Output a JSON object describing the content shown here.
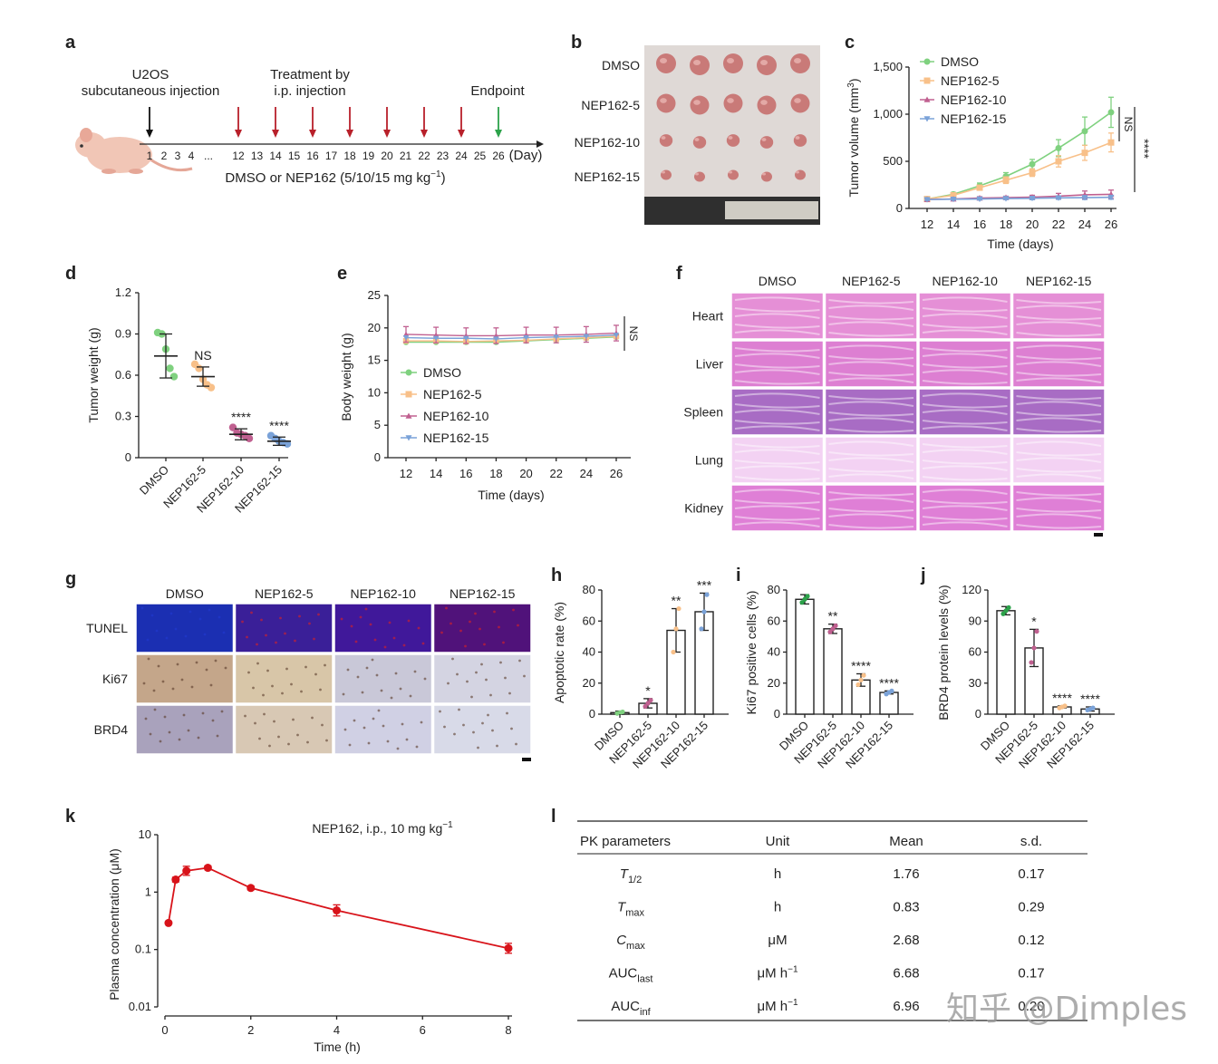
{
  "panels": {
    "a": "a",
    "b": "b",
    "c": "c",
    "d": "d",
    "e": "e",
    "f": "f",
    "g": "g",
    "h": "h",
    "i": "i",
    "j": "j",
    "k": "k",
    "l": "l"
  },
  "panel_a": {
    "injection_label_1": "U2OS",
    "injection_label_2": "subcutaneous injection",
    "treatment_label_1": "Treatment by",
    "treatment_label_2": "i.p. injection",
    "endpoint_label": "Endpoint",
    "axis_ticks": [
      "1",
      "2",
      "3",
      "4",
      "...",
      "12",
      "13",
      "14",
      "15",
      "16",
      "17",
      "18",
      "19",
      "20",
      "21",
      "22",
      "23",
      "24",
      "25",
      "26"
    ],
    "unit": "(Day)",
    "treatment_days": [
      12,
      14,
      16,
      18,
      20,
      22,
      24
    ],
    "endpoint_day": 26,
    "dose_label_main": "DMSO or NEP162 (5/10/15 mg kg",
    "dose_label_sup": "−1",
    "dose_label_close": ")",
    "colors": {
      "injection": "#111111",
      "treatment": "#b8202a",
      "endpoint": "#2ca24a"
    }
  },
  "panel_b": {
    "row_labels": [
      "DMSO",
      "NEP162-5",
      "NEP162-10",
      "NEP162-15"
    ],
    "tumors_per_row": 5,
    "relative_size": [
      1.0,
      0.95,
      0.62,
      0.5
    ]
  },
  "panel_c": {
    "chart_data": {
      "type": "line",
      "x": [
        12,
        14,
        16,
        18,
        20,
        22,
        24,
        26
      ],
      "series": [
        {
          "name": "DMSO",
          "values": [
            100,
            150,
            240,
            340,
            470,
            640,
            820,
            1020
          ],
          "err": [
            15,
            20,
            30,
            40,
            50,
            90,
            150,
            160
          ],
          "color": "#7fd17f",
          "marker": "circle"
        },
        {
          "name": "NEP162-5",
          "values": [
            100,
            140,
            220,
            300,
            380,
            500,
            590,
            700
          ],
          "err": [
            15,
            20,
            25,
            35,
            40,
            60,
            80,
            100
          ],
          "color": "#f8c089",
          "marker": "square"
        },
        {
          "name": "NEP162-10",
          "values": [
            95,
            100,
            110,
            115,
            120,
            130,
            145,
            150
          ],
          "err": [
            10,
            10,
            15,
            15,
            20,
            30,
            40,
            45
          ],
          "color": "#c06090",
          "marker": "triangle"
        },
        {
          "name": "NEP162-15",
          "values": [
            95,
            98,
            100,
            105,
            108,
            112,
            115,
            118
          ],
          "err": [
            10,
            10,
            10,
            10,
            15,
            15,
            20,
            20
          ],
          "color": "#7aa2d8",
          "marker": "triangle-down"
        }
      ],
      "xlabel": "Time (days)",
      "ylabel_main": "Tumor volume (mm",
      "ylabel_sup": "3",
      "ylabel_close": ")",
      "yticks": [
        "0",
        "500",
        "1,000",
        "1,500"
      ],
      "ylim": [
        0,
        1500
      ],
      "xticks": [
        "12",
        "14",
        "16",
        "18",
        "20",
        "22",
        "24",
        "26"
      ],
      "sig": [
        "NS",
        "****"
      ]
    }
  },
  "panel_d": {
    "chart_data": {
      "type": "scatter",
      "categories": [
        "DMSO",
        "NEP162-5",
        "NEP162-10",
        "NEP162-15"
      ],
      "means": [
        0.74,
        0.59,
        0.17,
        0.12
      ],
      "sd": [
        0.16,
        0.07,
        0.04,
        0.03
      ],
      "points": [
        [
          0.91,
          0.9,
          0.79,
          0.65,
          0.59
        ],
        [
          0.68,
          0.65,
          0.57,
          0.53,
          0.51
        ],
        [
          0.22,
          0.18,
          0.17,
          0.16,
          0.14
        ],
        [
          0.16,
          0.14,
          0.12,
          0.11,
          0.1
        ]
      ],
      "colors": [
        "#7fd17f",
        "#f8c089",
        "#c06090",
        "#7aa2d8"
      ],
      "ylabel": "Tumor weight (g)",
      "yticks": [
        "0",
        "0.3",
        "0.6",
        "0.9",
        "1.2"
      ],
      "ylim": [
        0,
        1.2
      ],
      "sig": [
        "",
        "NS",
        "****",
        "****"
      ]
    }
  },
  "panel_e": {
    "chart_data": {
      "type": "line",
      "x": [
        12,
        14,
        16,
        18,
        20,
        22,
        24,
        26
      ],
      "series": [
        {
          "name": "DMSO",
          "values": [
            17.8,
            17.8,
            17.8,
            17.8,
            18.0,
            18.2,
            18.4,
            18.6
          ],
          "color": "#7fd17f",
          "marker": "circle"
        },
        {
          "name": "NEP162-5",
          "values": [
            18.0,
            18.0,
            17.9,
            18.0,
            18.1,
            18.3,
            18.5,
            18.7
          ],
          "color": "#f8c089",
          "marker": "square"
        },
        {
          "name": "NEP162-10",
          "values": [
            19.0,
            18.9,
            18.8,
            18.8,
            18.9,
            18.9,
            19.0,
            19.2
          ],
          "err": [
            1.2,
            1.2,
            1.2,
            1.2,
            1.2,
            1.2,
            1.2,
            1.2
          ],
          "color": "#c06090",
          "marker": "triangle"
        },
        {
          "name": "NEP162-15",
          "values": [
            18.5,
            18.4,
            18.4,
            18.3,
            18.5,
            18.6,
            18.7,
            18.9
          ],
          "color": "#7aa2d8",
          "marker": "triangle-down"
        }
      ],
      "xlabel": "Time (days)",
      "ylabel": "Body weight (g)",
      "yticks": [
        "0",
        "5",
        "10",
        "15",
        "20",
        "25"
      ],
      "ylim": [
        0,
        25
      ],
      "xticks": [
        "12",
        "14",
        "16",
        "18",
        "20",
        "22",
        "24",
        "26"
      ],
      "sig": "NS"
    }
  },
  "panel_f": {
    "columns": [
      "DMSO",
      "NEP162-5",
      "NEP162-10",
      "NEP162-15"
    ],
    "rows": [
      "Heart",
      "Liver",
      "Spleen",
      "Lung",
      "Kidney"
    ],
    "row_colors": [
      "#e58fd6",
      "#dd7fd2",
      "#a86cc4",
      "#f3d2f3",
      "#df7fd6"
    ]
  },
  "panel_g": {
    "columns": [
      "DMSO",
      "NEP162-5",
      "NEP162-10",
      "NEP162-15"
    ],
    "rows": [
      "TUNEL",
      "Ki67",
      "BRD4"
    ],
    "row_colors": [
      [
        "#1b2fb2",
        "#3a1f98",
        "#40189a",
        "#50127a"
      ],
      [
        "#c4a68a",
        "#d8c6a8",
        "#c9c8d8",
        "#d4d4e2"
      ],
      [
        "#a9a2bc",
        "#d8c8b4",
        "#d0d0e4",
        "#d8dae8"
      ]
    ]
  },
  "panel_h": {
    "chart_data": {
      "type": "bar",
      "categories": [
        "DMSO",
        "NEP162-5",
        "NEP162-10",
        "NEP162-15"
      ],
      "values": [
        1,
        7,
        54,
        66
      ],
      "sd": [
        1,
        3,
        14,
        12
      ],
      "points": [
        [
          0.5,
          1,
          1.5
        ],
        [
          5,
          7,
          9
        ],
        [
          40,
          55,
          68
        ],
        [
          55,
          66,
          77
        ]
      ],
      "point_colors": [
        "#7fd17f",
        "#c06090",
        "#f8c089",
        "#7aa2d8"
      ],
      "ylabel": "Apoptotic rate (%)",
      "yticks": [
        "0",
        "20",
        "40",
        "60",
        "80"
      ],
      "ylim": [
        0,
        80
      ],
      "sig": [
        "",
        "*",
        "**",
        "***"
      ]
    }
  },
  "panel_i": {
    "chart_data": {
      "type": "bar",
      "categories": [
        "DMSO",
        "NEP162-5",
        "NEP162-10",
        "NEP162-15"
      ],
      "values": [
        74,
        55,
        22,
        14
      ],
      "sd": [
        3,
        3,
        4,
        1
      ],
      "points": [
        [
          72,
          74,
          76
        ],
        [
          53,
          55,
          57
        ],
        [
          19,
          22,
          25
        ],
        [
          13,
          14,
          15
        ]
      ],
      "point_colors": [
        "#2ca24a",
        "#c06090",
        "#f8c089",
        "#7aa2d8"
      ],
      "ylabel": "Ki67 positive cells (%)",
      "yticks": [
        "0",
        "20",
        "40",
        "60",
        "80"
      ],
      "ylim": [
        0,
        80
      ],
      "sig": [
        "",
        "**",
        "****",
        "****"
      ]
    }
  },
  "panel_j": {
    "chart_data": {
      "type": "bar",
      "categories": [
        "DMSO",
        "NEP162-5",
        "NEP162-10",
        "NEP162-15"
      ],
      "values": [
        100,
        64,
        7,
        5
      ],
      "sd": [
        4,
        18,
        1,
        2
      ],
      "points": [
        [
          97,
          100,
          103
        ],
        [
          50,
          64,
          80
        ],
        [
          6,
          7,
          8
        ],
        [
          4,
          5,
          6
        ]
      ],
      "point_colors": [
        "#2ca24a",
        "#c06090",
        "#f8c089",
        "#7aa2d8"
      ],
      "ylabel": "BRD4 protein levels (%)",
      "yticks": [
        "0",
        "30",
        "60",
        "90",
        "120"
      ],
      "ylim": [
        0,
        120
      ],
      "sig": [
        "",
        "*",
        "****",
        "****"
      ]
    }
  },
  "panel_k": {
    "chart_data": {
      "type": "line",
      "x": [
        0.083,
        0.25,
        0.5,
        1,
        2,
        4,
        8
      ],
      "values": [
        0.29,
        1.65,
        2.35,
        2.65,
        1.18,
        0.48,
        0.105
      ],
      "err_factor": [
        1.0,
        1.1,
        1.2,
        1.08,
        1.08,
        1.25,
        1.22
      ],
      "color": "#d8131a",
      "title_main": "NEP162, i.p., 10 mg kg",
      "title_sup": "−1",
      "xlabel": "Time (h)",
      "ylabel": "Plasma concentration (μM)",
      "xticks": [
        "0",
        "2",
        "4",
        "6",
        "8"
      ],
      "yticks": [
        "0.01",
        "0.1",
        "1",
        "10"
      ],
      "scale": "log",
      "ylim": [
        0.01,
        10
      ],
      "xlim": [
        0,
        8
      ]
    }
  },
  "panel_l": {
    "headers": [
      "PK parameters",
      "Unit",
      "Mean",
      "s.d."
    ],
    "rows": [
      {
        "param": "T",
        "sub": "1/2",
        "unit": "h",
        "unit_sup": "",
        "mean": "1.76",
        "sd": "0.17"
      },
      {
        "param": "T",
        "sub": "max",
        "unit": "h",
        "unit_sup": "",
        "mean": "0.83",
        "sd": "0.29"
      },
      {
        "param": "C",
        "sub": "max",
        "unit": "μM",
        "unit_sup": "",
        "mean": "2.68",
        "sd": "0.12"
      },
      {
        "param": "AUC",
        "sub": "last",
        "unit": "μM h",
        "unit_sup": "−1",
        "mean": "6.68",
        "sd": "0.17"
      },
      {
        "param": "AUC",
        "sub": "inf",
        "unit": "μM h",
        "unit_sup": "−1",
        "mean": "6.96",
        "sd": "0.20"
      }
    ]
  },
  "watermark": "知乎 @Dimples"
}
